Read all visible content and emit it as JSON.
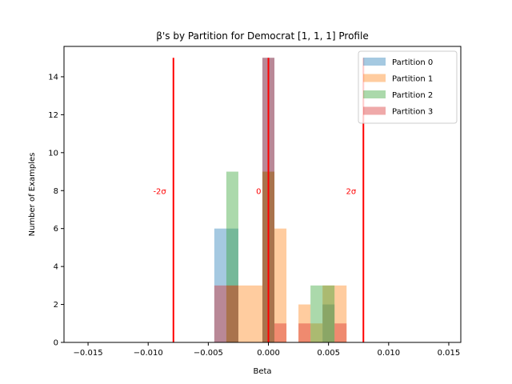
{
  "chart_data": {
    "type": "histogram",
    "title": "β's by Partition for Democrat [1, 1, 1] Profile",
    "xlabel": "Beta",
    "ylabel": "Number of Examples",
    "xlim": [
      -0.017,
      0.016
    ],
    "ylim": [
      0,
      15.6
    ],
    "xticks": [
      -0.015,
      -0.01,
      -0.005,
      0.0,
      0.005,
      0.01,
      0.015
    ],
    "xtick_labels": [
      "−0.015",
      "−0.010",
      "−0.005",
      "0.000",
      "0.005",
      "0.010",
      "0.015"
    ],
    "yticks": [
      0,
      2,
      4,
      6,
      8,
      10,
      12,
      14
    ],
    "ytick_labels": [
      "0",
      "2",
      "4",
      "6",
      "8",
      "10",
      "12",
      "14"
    ],
    "legend_position": "top-right",
    "bar_opacity": 0.4,
    "series": [
      {
        "name": "Partition 0",
        "color": "#1f77b4",
        "bins": [
          {
            "x0": -0.0045,
            "x1": -0.0035,
            "count": 6
          },
          {
            "x0": -0.0035,
            "x1": -0.0025,
            "count": 6
          },
          {
            "x0": -0.0005,
            "x1": 0.0005,
            "count": 15
          },
          {
            "x0": 0.0045,
            "x1": 0.0055,
            "count": 2
          }
        ]
      },
      {
        "name": "Partition 1",
        "color": "#ff7f0e",
        "bins": [
          {
            "x0": -0.0035,
            "x1": -0.0025,
            "count": 3
          },
          {
            "x0": -0.0025,
            "x1": -0.0015,
            "count": 3
          },
          {
            "x0": -0.0015,
            "x1": -0.0005,
            "count": 3
          },
          {
            "x0": -0.0005,
            "x1": 0.0005,
            "count": 9
          },
          {
            "x0": 0.0005,
            "x1": 0.0015,
            "count": 6
          },
          {
            "x0": 0.0025,
            "x1": 0.0035,
            "count": 2
          },
          {
            "x0": 0.0035,
            "x1": 0.0045,
            "count": 1
          },
          {
            "x0": 0.0045,
            "x1": 0.0055,
            "count": 3
          },
          {
            "x0": 0.0055,
            "x1": 0.0065,
            "count": 3
          }
        ]
      },
      {
        "name": "Partition 2",
        "color": "#2ca02c",
        "bins": [
          {
            "x0": -0.0035,
            "x1": -0.0025,
            "count": 9
          },
          {
            "x0": -0.0005,
            "x1": 0.0005,
            "count": 9
          },
          {
            "x0": 0.0035,
            "x1": 0.0045,
            "count": 3
          },
          {
            "x0": 0.0045,
            "x1": 0.0055,
            "count": 3
          }
        ]
      },
      {
        "name": "Partition 3",
        "color": "#d62728",
        "bins": [
          {
            "x0": -0.0045,
            "x1": -0.0035,
            "count": 3
          },
          {
            "x0": -0.0035,
            "x1": -0.0025,
            "count": 3
          },
          {
            "x0": -0.0005,
            "x1": 0.0005,
            "count": 15
          },
          {
            "x0": 0.0005,
            "x1": 0.0015,
            "count": 1
          },
          {
            "x0": 0.0025,
            "x1": 0.0035,
            "count": 1
          },
          {
            "x0": 0.0055,
            "x1": 0.0065,
            "count": 1
          }
        ]
      }
    ],
    "reference_lines": [
      {
        "x": -0.0079,
        "label": "-2σ",
        "color": "#ff0000",
        "ymax": 15,
        "label_y": 8
      },
      {
        "x": 0.0,
        "label": "0",
        "color": "#ff0000",
        "ymax": 15,
        "label_y": 8
      },
      {
        "x": 0.0079,
        "label": "2σ",
        "color": "#ff0000",
        "ymax": 15,
        "label_y": 8
      }
    ]
  }
}
